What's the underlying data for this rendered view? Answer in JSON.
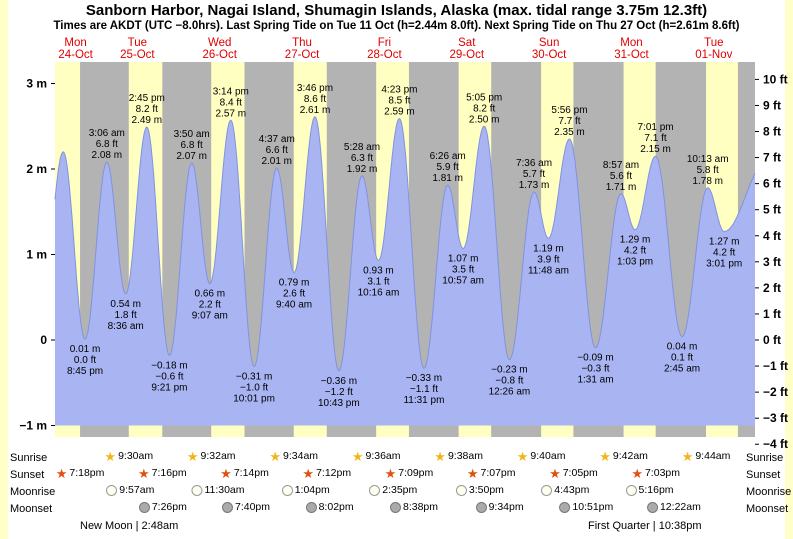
{
  "page": {
    "title": "Sanborn Harbor, Nagai Island, Shumagin Islands, Alaska (max. tidal range 3.75m 12.3ft)",
    "subtitle": "Times are AKDT (UTC −8.0hrs). Last Spring Tide on Tue 11 Oct (h=2.44m 8.0ft). Next Spring Tide on Thu 27 Oct (h=2.61m 8.6ft)",
    "footer": {
      "left": "New Moon | 2:48am",
      "right": "First Quarter | 10:38pm"
    }
  },
  "colors": {
    "page_bg": "#ffffc9",
    "card_bg": "#ffffff",
    "day_band": "#ffffc2",
    "night_band": "#b3b3b3",
    "tide_fill": "#a9b4f2",
    "tide_stroke": "#8093e0",
    "day_label": "#e00000",
    "text": "#000000",
    "sunrise_icon": "#f2b51b",
    "sunset_icon": "#e25010",
    "moonrise_icon_fill": "#fffff0",
    "moonrise_icon_border": "#999999",
    "moonset_icon_fill": "#aaaaaa",
    "moonset_icon_border": "#777777"
  },
  "icons": {
    "sunrise_star": "★",
    "sunset_star": "★",
    "moonrise_disc": "circle",
    "moonset_disc": "circle"
  },
  "y_axis": {
    "left_labels": [
      {
        "text": "3 m",
        "m": 3
      },
      {
        "text": "2 m",
        "m": 2
      },
      {
        "text": "1 m",
        "m": 1
      },
      {
        "text": "0",
        "m": 0
      },
      {
        "text": "−1 m",
        "m": -1
      }
    ],
    "right_labels": [
      {
        "text": "10 ft",
        "ft": 10
      },
      {
        "text": "9 ft",
        "ft": 9
      },
      {
        "text": "8 ft",
        "ft": 8
      },
      {
        "text": "7 ft",
        "ft": 7
      },
      {
        "text": "6 ft",
        "ft": 6
      },
      {
        "text": "5 ft",
        "ft": 5
      },
      {
        "text": "4 ft",
        "ft": 4
      },
      {
        "text": "3 ft",
        "ft": 3
      },
      {
        "text": "2 ft",
        "ft": 2
      },
      {
        "text": "1 ft",
        "ft": 1
      },
      {
        "text": "0 ft",
        "ft": 0
      },
      {
        "text": "−1 ft",
        "ft": -1
      },
      {
        "text": "−2 ft",
        "ft": -2
      },
      {
        "text": "−3 ft",
        "ft": -3
      },
      {
        "text": "−4 ft",
        "ft": -4
      }
    ]
  },
  "days": [
    {
      "name": "Mon",
      "date": "24-Oct",
      "t": 18
    },
    {
      "name": "Tue",
      "date": "25-Oct",
      "t": 36
    },
    {
      "name": "Wed",
      "date": "26-Oct",
      "t": 60
    },
    {
      "name": "Thu",
      "date": "27-Oct",
      "t": 84
    },
    {
      "name": "Fri",
      "date": "28-Oct",
      "t": 108
    },
    {
      "name": "Sat",
      "date": "29-Oct",
      "t": 132
    },
    {
      "name": "Sun",
      "date": "30-Oct",
      "t": 156
    },
    {
      "name": "Mon",
      "date": "31-Oct",
      "t": 180
    },
    {
      "name": "Tue",
      "date": "01-Nov",
      "t": 204
    }
  ],
  "chart_data": {
    "type": "area",
    "title": "Sanborn Harbor tide heights",
    "ylabel_left": "m",
    "ylabel_right": "ft",
    "ylim_m": [
      -1.25,
      3.3
    ],
    "x_domain_hours": [
      12,
      216
    ],
    "hours_origin": "Mon 24-Oct 00:00",
    "tide_events": [
      {
        "t": 8.2,
        "m": 0.5,
        "type": "low",
        "labeled": false
      },
      {
        "t": 14.4,
        "m": 2.2,
        "type": "high",
        "labeled": false
      },
      {
        "t": 20.75,
        "m": 0.01,
        "type": "low",
        "labeled": true,
        "lines": [
          "0.01 m",
          "0.0 ft",
          "8:45 pm"
        ]
      },
      {
        "t": 27.1,
        "m": 2.08,
        "type": "high",
        "labeled": true,
        "lines": [
          "3:06 am",
          "6.8 ft",
          "2.08 m"
        ]
      },
      {
        "t": 32.6,
        "m": 0.54,
        "type": "low",
        "labeled": true,
        "lines": [
          "0.54 m",
          "1.8 ft",
          "8:36 am"
        ]
      },
      {
        "t": 38.75,
        "m": 2.49,
        "type": "high",
        "labeled": true,
        "lines": [
          "2:45 pm",
          "8.2 ft",
          "2.49 m"
        ]
      },
      {
        "t": 45.35,
        "m": -0.18,
        "type": "low",
        "labeled": true,
        "lines": [
          "−0.18 m",
          "−0.6 ft",
          "9:21 pm"
        ]
      },
      {
        "t": 51.83,
        "m": 2.07,
        "type": "high",
        "labeled": true,
        "lines": [
          "3:50 am",
          "6.8 ft",
          "2.07 m"
        ]
      },
      {
        "t": 57.12,
        "m": 0.66,
        "type": "low",
        "labeled": true,
        "lines": [
          "0.66 m",
          "2.2 ft",
          "9:07 am"
        ]
      },
      {
        "t": 63.23,
        "m": 2.57,
        "type": "high",
        "labeled": true,
        "lines": [
          "3:14 pm",
          "8.4 ft",
          "2.57 m"
        ]
      },
      {
        "t": 70.02,
        "m": -0.31,
        "type": "low",
        "labeled": true,
        "lines": [
          "−0.31 m",
          "−1.0 ft",
          "10:01 pm"
        ]
      },
      {
        "t": 76.62,
        "m": 2.01,
        "type": "high",
        "labeled": true,
        "lines": [
          "4:37 am",
          "6.6 ft",
          "2.01 m"
        ]
      },
      {
        "t": 81.67,
        "m": 0.79,
        "type": "low",
        "labeled": true,
        "lines": [
          "0.79 m",
          "2.6 ft",
          "9:40 am"
        ]
      },
      {
        "t": 87.77,
        "m": 2.61,
        "type": "high",
        "labeled": true,
        "lines": [
          "3:46 pm",
          "8.6 ft",
          "2.61 m"
        ]
      },
      {
        "t": 94.72,
        "m": -0.36,
        "type": "low",
        "labeled": true,
        "lines": [
          "−0.36 m",
          "−1.2 ft",
          "10:43 pm"
        ]
      },
      {
        "t": 101.47,
        "m": 1.92,
        "type": "high",
        "labeled": true,
        "lines": [
          "5:28 am",
          "6.3 ft",
          "1.92 m"
        ]
      },
      {
        "t": 106.27,
        "m": 0.93,
        "type": "low",
        "labeled": true,
        "lines": [
          "0.93 m",
          "3.1 ft",
          "10:16 am"
        ]
      },
      {
        "t": 112.38,
        "m": 2.59,
        "type": "high",
        "labeled": true,
        "lines": [
          "4:23 pm",
          "8.5 ft",
          "2.59 m"
        ]
      },
      {
        "t": 119.52,
        "m": -0.33,
        "type": "low",
        "labeled": true,
        "lines": [
          "−0.33 m",
          "−1.1 ft",
          "11:31 pm"
        ]
      },
      {
        "t": 126.43,
        "m": 1.81,
        "type": "high",
        "labeled": true,
        "lines": [
          "6:26 am",
          "5.9 ft",
          "1.81 m"
        ]
      },
      {
        "t": 130.95,
        "m": 1.07,
        "type": "low",
        "labeled": true,
        "lines": [
          "1.07 m",
          "3.5 ft",
          "10:57 am"
        ]
      },
      {
        "t": 137.08,
        "m": 2.5,
        "type": "high",
        "labeled": true,
        "lines": [
          "5:05 pm",
          "8.2 ft",
          "2.50 m"
        ]
      },
      {
        "t": 144.43,
        "m": -0.23,
        "type": "low",
        "labeled": true,
        "lines": [
          "−0.23 m",
          "−0.8 ft",
          "12:26 am"
        ]
      },
      {
        "t": 151.6,
        "m": 1.73,
        "type": "high",
        "labeled": true,
        "lines": [
          "7:36 am",
          "5.7 ft",
          "1.73 m"
        ]
      },
      {
        "t": 155.8,
        "m": 1.19,
        "type": "low",
        "labeled": true,
        "lines": [
          "1.19 m",
          "3.9 ft",
          "11:48 am"
        ]
      },
      {
        "t": 161.93,
        "m": 2.35,
        "type": "high",
        "labeled": true,
        "lines": [
          "5:56 pm",
          "7.7 ft",
          "2.35 m"
        ]
      },
      {
        "t": 169.52,
        "m": -0.09,
        "type": "low",
        "labeled": true,
        "lines": [
          "−0.09 m",
          "−0.3 ft",
          "1:31 am"
        ]
      },
      {
        "t": 176.95,
        "m": 1.71,
        "type": "high",
        "labeled": true,
        "lines": [
          "8:57 am",
          "5.6 ft",
          "1.71 m"
        ]
      },
      {
        "t": 181.05,
        "m": 1.29,
        "type": "low",
        "labeled": true,
        "lines": [
          "1.29 m",
          "4.2 ft",
          "1:03 pm"
        ]
      },
      {
        "t": 187.02,
        "m": 2.15,
        "type": "high",
        "labeled": true,
        "lines": [
          "7:01 pm",
          "7.1 ft",
          "2.15 m"
        ]
      },
      {
        "t": 194.75,
        "m": 0.04,
        "type": "low",
        "labeled": true,
        "lines": [
          "0.04 m",
          "0.1 ft",
          "2:45 am"
        ]
      },
      {
        "t": 202.22,
        "m": 1.78,
        "type": "high",
        "labeled": true,
        "lines": [
          "10:13 am",
          "5.8 ft",
          "1.78 m"
        ]
      },
      {
        "t": 207.02,
        "m": 1.27,
        "type": "low",
        "labeled": true,
        "lines": [
          "1.27 m",
          "4.2 ft",
          "3:01 pm"
        ]
      },
      {
        "t": 219.5,
        "m": 2.1,
        "type": "high",
        "labeled": false
      }
    ],
    "night_intervals_hours": [
      [
        19.3,
        33.5
      ],
      [
        43.27,
        57.53
      ],
      [
        67.23,
        81.57
      ],
      [
        91.2,
        105.6
      ],
      [
        115.15,
        129.63
      ],
      [
        139.12,
        153.67
      ],
      [
        163.08,
        177.7
      ],
      [
        187.05,
        201.73
      ],
      [
        211.02,
        216
      ]
    ]
  },
  "astro": {
    "row_labels": [
      "Sunrise",
      "Sunset",
      "Moonrise",
      "Moonset"
    ],
    "sunrise": [
      {
        "t": 33.5,
        "time": "9:30am"
      },
      {
        "t": 57.53,
        "time": "9:32am"
      },
      {
        "t": 81.57,
        "time": "9:34am"
      },
      {
        "t": 105.6,
        "time": "9:36am"
      },
      {
        "t": 129.63,
        "time": "9:38am"
      },
      {
        "t": 153.67,
        "time": "9:40am"
      },
      {
        "t": 177.7,
        "time": "9:42am"
      },
      {
        "t": 201.73,
        "time": "9:44am"
      }
    ],
    "sunset": [
      {
        "t": 19.3,
        "time": "7:18pm"
      },
      {
        "t": 43.27,
        "time": "7:16pm"
      },
      {
        "t": 67.23,
        "time": "7:14pm"
      },
      {
        "t": 91.2,
        "time": "7:12pm"
      },
      {
        "t": 115.15,
        "time": "7:09pm"
      },
      {
        "t": 139.12,
        "time": "7:07pm"
      },
      {
        "t": 163.08,
        "time": "7:05pm"
      },
      {
        "t": 187.05,
        "time": "7:03pm"
      }
    ],
    "moonrise": [
      {
        "t": 33.95,
        "time": "9:57am"
      },
      {
        "t": 59.5,
        "time": "11:30am"
      },
      {
        "t": 85.07,
        "time": "1:04pm"
      },
      {
        "t": 110.58,
        "time": "2:35pm"
      },
      {
        "t": 135.83,
        "time": "3:50pm"
      },
      {
        "t": 160.72,
        "time": "4:43pm"
      },
      {
        "t": 185.27,
        "time": "5:16pm"
      }
    ],
    "moonset": [
      {
        "t": 43.43,
        "time": "7:26pm"
      },
      {
        "t": 67.67,
        "time": "7:40pm"
      },
      {
        "t": 92.03,
        "time": "8:02pm"
      },
      {
        "t": 116.63,
        "time": "8:38pm"
      },
      {
        "t": 141.57,
        "time": "9:34pm"
      },
      {
        "t": 166.85,
        "time": "10:51pm"
      },
      {
        "t": 192.37,
        "time": "12:22am"
      }
    ]
  }
}
